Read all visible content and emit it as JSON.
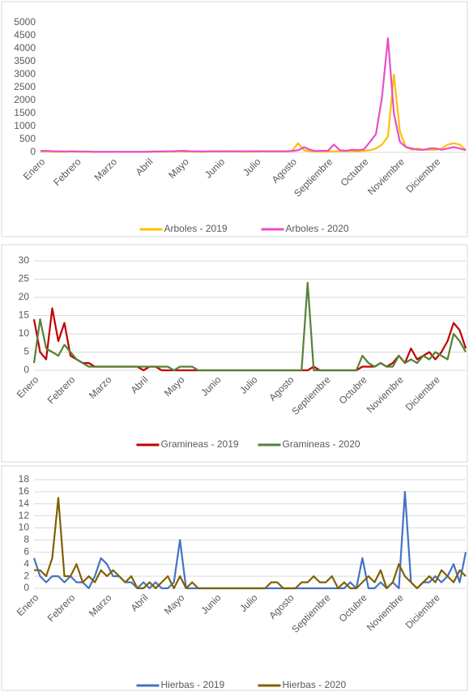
{
  "chart_data": [
    {
      "type": "line",
      "grid": false,
      "legend": "bottom",
      "categories": [
        "Enero",
        null,
        null,
        null,
        null,
        null,
        "Febrero",
        null,
        null,
        null,
        null,
        null,
        "Marzo",
        null,
        null,
        null,
        null,
        null,
        "Abril",
        null,
        null,
        null,
        null,
        null,
        "Mayo",
        null,
        null,
        null,
        null,
        null,
        "Junio",
        null,
        null,
        null,
        null,
        null,
        "Julio",
        null,
        null,
        null,
        null,
        null,
        "Agosto",
        null,
        null,
        null,
        null,
        null,
        "Septiembre",
        null,
        null,
        null,
        null,
        null,
        "Octubre",
        null,
        null,
        null,
        null,
        null,
        "Noviembre",
        null,
        null,
        null,
        null,
        null,
        "Diciembre",
        null,
        null,
        null,
        null,
        null
      ],
      "ylim": [
        0,
        5000
      ],
      "yticks": [
        0,
        500,
        1000,
        1500,
        2000,
        2500,
        3000,
        3500,
        4000,
        4500,
        5000
      ],
      "series": [
        {
          "name": "Arboles - 2019",
          "color": "#ffc000",
          "values": [
            30,
            40,
            30,
            20,
            20,
            30,
            30,
            20,
            20,
            20,
            20,
            20,
            20,
            20,
            20,
            20,
            20,
            20,
            30,
            30,
            30,
            20,
            30,
            40,
            30,
            30,
            20,
            20,
            30,
            30,
            30,
            40,
            30,
            30,
            20,
            30,
            30,
            50,
            30,
            40,
            30,
            40,
            60,
            350,
            80,
            40,
            30,
            30,
            30,
            30,
            40,
            50,
            40,
            40,
            60,
            80,
            150,
            300,
            600,
            3000,
            800,
            200,
            100,
            150,
            100,
            100,
            100,
            150,
            300,
            350,
            300,
            100
          ]
        },
        {
          "name": "Arboles - 2020",
          "color": "#e84fc9",
          "values": [
            50,
            60,
            40,
            40,
            30,
            40,
            30,
            30,
            30,
            20,
            20,
            20,
            20,
            20,
            20,
            20,
            20,
            20,
            20,
            30,
            30,
            40,
            40,
            50,
            60,
            40,
            40,
            30,
            40,
            40,
            40,
            40,
            40,
            40,
            40,
            40,
            40,
            40,
            40,
            40,
            40,
            40,
            50,
            80,
            200,
            100,
            50,
            60,
            60,
            300,
            80,
            60,
            100,
            80,
            120,
            400,
            700,
            2100,
            4400,
            1500,
            400,
            200,
            150,
            100,
            100,
            150,
            150,
            100,
            150,
            200,
            150,
            80
          ]
        }
      ]
    },
    {
      "type": "line",
      "grid": true,
      "legend": "bottom",
      "categories": [
        "Enero",
        null,
        null,
        null,
        null,
        null,
        "Febrero",
        null,
        null,
        null,
        null,
        null,
        "Marzo",
        null,
        null,
        null,
        null,
        null,
        "Abril",
        null,
        null,
        null,
        null,
        null,
        "Mayo",
        null,
        null,
        null,
        null,
        null,
        "Junio",
        null,
        null,
        null,
        null,
        null,
        "Julio",
        null,
        null,
        null,
        null,
        null,
        "Agosto",
        null,
        null,
        null,
        null,
        null,
        "Septiembre",
        null,
        null,
        null,
        null,
        null,
        "Octubre",
        null,
        null,
        null,
        null,
        null,
        "Noviembre",
        null,
        null,
        null,
        null,
        null,
        "Diciembre",
        null,
        null,
        null,
        null,
        null
      ],
      "ylim": [
        0,
        30
      ],
      "yticks": [
        0,
        5,
        10,
        15,
        20,
        25,
        30
      ],
      "series": [
        {
          "name": "Gramineas - 2019",
          "color": "#c00000",
          "values": [
            14,
            5,
            3,
            17,
            8,
            13,
            4,
            3,
            2,
            2,
            1,
            1,
            1,
            1,
            1,
            1,
            1,
            1,
            0,
            1,
            1,
            0,
            0,
            0,
            0,
            0,
            0,
            0,
            0,
            0,
            0,
            0,
            0,
            0,
            0,
            0,
            0,
            0,
            0,
            0,
            0,
            0,
            0,
            0,
            0,
            0,
            1,
            0,
            0,
            0,
            0,
            0,
            0,
            0,
            1,
            1,
            1,
            2,
            1,
            2,
            4,
            2,
            6,
            3,
            4,
            5,
            3,
            5,
            8,
            13,
            11,
            6
          ]
        },
        {
          "name": "Gramineas - 2020",
          "color": "#548235",
          "values": [
            2,
            14,
            6,
            5,
            4,
            7,
            5,
            3,
            2,
            1,
            1,
            1,
            1,
            1,
            1,
            1,
            1,
            1,
            1,
            1,
            1,
            1,
            1,
            0,
            1,
            1,
            1,
            0,
            0,
            0,
            0,
            0,
            0,
            0,
            0,
            0,
            0,
            0,
            0,
            0,
            0,
            0,
            0,
            0,
            0,
            24,
            0,
            0,
            0,
            0,
            0,
            0,
            0,
            0,
            4,
            2,
            1,
            2,
            1,
            1,
            4,
            2,
            3,
            2,
            4,
            3,
            5,
            4,
            3,
            10,
            8,
            5
          ]
        }
      ]
    },
    {
      "type": "line",
      "grid": true,
      "legend": "bottom",
      "categories": [
        "Enero",
        null,
        null,
        null,
        null,
        null,
        "Febrero",
        null,
        null,
        null,
        null,
        null,
        "Marzo",
        null,
        null,
        null,
        null,
        null,
        "Abril",
        null,
        null,
        null,
        null,
        null,
        "Mayo",
        null,
        null,
        null,
        null,
        null,
        "Junio",
        null,
        null,
        null,
        null,
        null,
        "Julio",
        null,
        null,
        null,
        null,
        null,
        "Agosto",
        null,
        null,
        null,
        null,
        null,
        "Septiembre",
        null,
        null,
        null,
        null,
        null,
        "Octubre",
        null,
        null,
        null,
        null,
        null,
        "Noviembre",
        null,
        null,
        null,
        null,
        null,
        "Diciembre",
        null,
        null,
        null,
        null,
        null
      ],
      "ylim": [
        0,
        18
      ],
      "yticks": [
        0,
        2,
        4,
        6,
        8,
        10,
        12,
        14,
        16,
        18
      ],
      "series": [
        {
          "name": "Hierbas - 2019",
          "color": "#4472c4",
          "values": [
            5,
            2,
            1,
            2,
            2,
            1,
            2,
            1,
            1,
            0,
            2,
            5,
            4,
            2,
            2,
            1,
            1,
            0,
            1,
            0,
            1,
            0,
            0,
            1,
            8,
            0,
            0,
            0,
            0,
            0,
            0,
            0,
            0,
            0,
            0,
            0,
            0,
            0,
            0,
            0,
            0,
            0,
            0,
            0,
            0,
            0,
            0,
            0,
            0,
            0,
            0,
            0,
            1,
            0,
            5,
            0,
            0,
            1,
            0,
            1,
            0,
            16,
            1,
            0,
            1,
            1,
            2,
            1,
            2,
            4,
            1,
            6
          ]
        },
        {
          "name": "Hierbas - 2020",
          "color": "#806000",
          "values": [
            3,
            3,
            2,
            5,
            15,
            2,
            2,
            4,
            1,
            2,
            1,
            3,
            2,
            3,
            2,
            1,
            2,
            0,
            0,
            1,
            0,
            1,
            2,
            0,
            2,
            0,
            1,
            0,
            0,
            0,
            0,
            0,
            0,
            0,
            0,
            0,
            0,
            0,
            0,
            1,
            1,
            0,
            0,
            0,
            1,
            1,
            2,
            1,
            1,
            2,
            0,
            1,
            0,
            0,
            1,
            2,
            1,
            3,
            0,
            1,
            4,
            2,
            1,
            0,
            1,
            2,
            1,
            3,
            2,
            1,
            3,
            2
          ]
        }
      ]
    }
  ]
}
